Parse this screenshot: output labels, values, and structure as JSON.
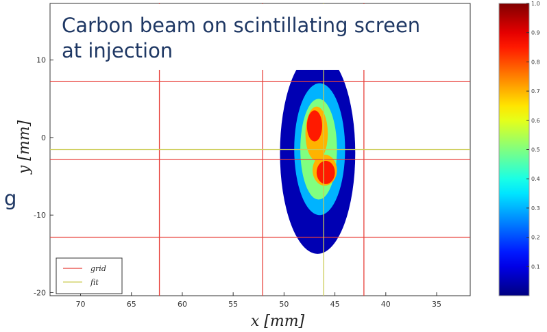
{
  "chart_data": {
    "type": "heatmap",
    "title": [
      "Carbon beam on scintillating screen",
      "at injection"
    ],
    "side_fragment": "g",
    "xlabel": "x [mm]",
    "ylabel": "y [mm]",
    "xlim": [
      73,
      31.7
    ],
    "ylim": [
      -20.4,
      17.3
    ],
    "xticks": [
      70,
      65,
      60,
      55,
      50,
      45,
      40,
      35
    ],
    "yticks": [
      -20,
      -10,
      0,
      10
    ],
    "colormap": "jet",
    "clim": [
      0,
      1
    ],
    "cticks": [
      0.1,
      0.2,
      0.3,
      0.4,
      0.5,
      0.6,
      0.7,
      0.8,
      0.9,
      {
        "value": 1,
        "label": "1.0"
      }
    ],
    "contours": [
      {
        "level": 0.05,
        "x": 46.7,
        "y": -2,
        "width": 7.4,
        "height": 26
      },
      {
        "level": 0.3,
        "x": 46.5,
        "y": -1.5,
        "width": 5,
        "height": 17
      },
      {
        "level": 0.5,
        "x": 46.6,
        "y": -1.5,
        "width": 3.6,
        "height": 13
      },
      {
        "level": 0.7,
        "x": 46.8,
        "y": 0.5,
        "width": 2.2,
        "height": 7
      },
      {
        "level": 0.7,
        "x": 46,
        "y": -4.2,
        "width": 2.4,
        "height": 4
      },
      {
        "level": 0.85,
        "x": 47,
        "y": 1.5,
        "width": 1.5,
        "height": 4
      },
      {
        "level": 0.85,
        "x": 45.9,
        "y": -4.5,
        "width": 1.8,
        "height": 3
      }
    ],
    "series": [
      {
        "name": "grid",
        "color": "#e8403a",
        "x": [
          62.25,
          52.1,
          42.15
        ],
        "y": [
          7.2,
          -2.8,
          -12.85
        ]
      },
      {
        "name": "fit",
        "color": "#cccc55",
        "x": [
          46.1
        ],
        "y": [
          -1.55
        ]
      }
    ],
    "legend": "lower left"
  }
}
